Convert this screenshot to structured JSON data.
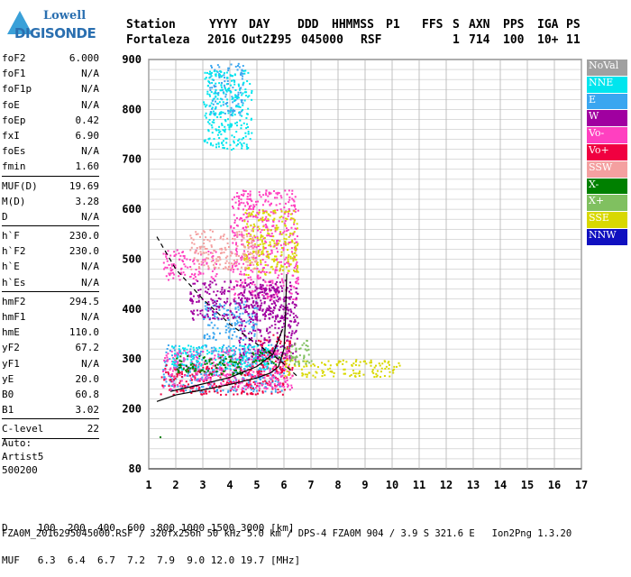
{
  "logo": {
    "line1": "Lowell",
    "line2": "DIGISONDE"
  },
  "header": {
    "labels": [
      "Station",
      "YYYY",
      "DAY",
      "DDD",
      "HHMMSS",
      "P1",
      "FFS",
      "S",
      "AXN",
      "PPS",
      "IGA",
      "PS"
    ],
    "values": [
      "Fortaleza",
      "2016",
      "Out21",
      "295",
      "045000",
      "RSF",
      "1",
      "714",
      "100",
      "10+",
      "11"
    ]
  },
  "params": [
    {
      "k": "foF2",
      "v": "6.000"
    },
    {
      "k": "foF1",
      "v": "N/A"
    },
    {
      "k": "foF1p",
      "v": "N/A"
    },
    {
      "k": "foE",
      "v": "N/A"
    },
    {
      "k": "foEp",
      "v": "0.42"
    },
    {
      "k": "fxI",
      "v": "6.90"
    },
    {
      "k": "foEs",
      "v": "N/A"
    },
    {
      "k": "fmin",
      "v": "1.60"
    },
    {
      "k": "MUF(D)",
      "v": "19.69"
    },
    {
      "k": "M(D)",
      "v": "3.28"
    },
    {
      "k": "D",
      "v": "N/A"
    },
    {
      "k": "h`F",
      "v": "230.0"
    },
    {
      "k": "h`F2",
      "v": "230.0"
    },
    {
      "k": "h`E",
      "v": "N/A"
    },
    {
      "k": "h`Es",
      "v": "N/A"
    },
    {
      "k": "hmF2",
      "v": "294.5"
    },
    {
      "k": "hmF1",
      "v": "N/A"
    },
    {
      "k": "hmE",
      "v": "110.0"
    },
    {
      "k": "yF2",
      "v": "67.2"
    },
    {
      "k": "yF1",
      "v": "N/A"
    },
    {
      "k": "yE",
      "v": "20.0"
    },
    {
      "k": "B0",
      "v": "60.8"
    },
    {
      "k": "B1",
      "v": "3.02"
    },
    {
      "k": "C-level",
      "v": "22"
    }
  ],
  "auto": {
    "line1": "Auto:",
    "line2": "Artist5",
    "line3": "500200"
  },
  "legend": [
    {
      "label": "NoVal",
      "color": "#a0a0a0"
    },
    {
      "label": "NNE",
      "color": "#00e5ee"
    },
    {
      "label": "E",
      "color": "#3aa6f0"
    },
    {
      "label": "W",
      "color": "#a000a0"
    },
    {
      "label": "Vo-",
      "color": "#ff40c0"
    },
    {
      "label": "Vo+",
      "color": "#f00040"
    },
    {
      "label": "SSW",
      "color": "#f4a0a0"
    },
    {
      "label": "X-",
      "color": "#008000"
    },
    {
      "label": "X+",
      "color": "#80c060"
    },
    {
      "label": "SSE",
      "color": "#d8d800"
    },
    {
      "label": "NNW",
      "color": "#1010c0"
    }
  ],
  "footer": {
    "d_line": "D     100  200  400  600  800 1000 1500 3000 [km]",
    "muf_line": "MUF   6.3  6.4  6.7  7.2  7.9  9.0 12.0 19.7 [MHz]",
    "file_line": "FZA0M_2016295045000.RSF / 320fx256h 50 kHz 5.0 km / DPS-4 FZA0M 904 / 3.9 S 321.6 E   Ion2Png 1.3.20"
  },
  "chart_data": {
    "type": "scatter",
    "xlim": [
      1,
      17
    ],
    "ylim": [
      80,
      900
    ],
    "xticks": [
      "1",
      "2",
      "3",
      "4",
      "5",
      "6",
      "7",
      "8",
      "9",
      "10",
      "11",
      "12",
      "13",
      "14",
      "15",
      "16",
      "17"
    ],
    "yticks": [
      "80",
      "200",
      "300",
      "400",
      "500",
      "600",
      "700",
      "800",
      "900"
    ],
    "grid": true,
    "series": [
      {
        "name": "E",
        "color": "#3aa6f0",
        "clusters": [
          [
            1.5,
            6.0,
            235,
            330
          ],
          [
            3.0,
            5.0,
            340,
            420
          ],
          [
            3.2,
            4.5,
            790,
            895
          ]
        ]
      },
      {
        "name": "Vo+",
        "color": "#f00040",
        "clusters": [
          [
            1.4,
            6.0,
            230,
            290
          ],
          [
            5.0,
            6.3,
            260,
            350
          ]
        ]
      },
      {
        "name": "Vo-",
        "color": "#ff40c0",
        "clusters": [
          [
            1.5,
            6.3,
            240,
            320
          ],
          [
            4.0,
            6.5,
            420,
            640
          ],
          [
            1.5,
            3.5,
            460,
            520
          ]
        ]
      },
      {
        "name": "W",
        "color": "#a000a0",
        "clusters": [
          [
            2.5,
            6.2,
            380,
            460
          ],
          [
            4.3,
            6.5,
            300,
            450
          ]
        ]
      },
      {
        "name": "SSE",
        "color": "#d8d800",
        "clusters": [
          [
            6.0,
            10.3,
            265,
            300
          ],
          [
            4.5,
            6.5,
            470,
            600
          ]
        ]
      },
      {
        "name": "NNE",
        "color": "#00e5ee",
        "clusters": [
          [
            1.8,
            5.5,
            280,
            330
          ],
          [
            3.0,
            4.8,
            720,
            880
          ]
        ]
      },
      {
        "name": "X-",
        "color": "#008000",
        "clusters": [
          [
            2.0,
            4.5,
            270,
            310
          ],
          [
            4.8,
            5.8,
            290,
            320
          ]
        ]
      },
      {
        "name": "X+",
        "color": "#80c060",
        "clusters": [
          [
            6.0,
            7.0,
            290,
            340
          ]
        ]
      },
      {
        "name": "SSW",
        "color": "#f4a0a0",
        "clusters": [
          [
            2.5,
            5.0,
            480,
            560
          ]
        ]
      }
    ],
    "lines": {
      "profile_solid": [
        [
          1.3,
          215
        ],
        [
          2,
          228
        ],
        [
          3,
          238
        ],
        [
          4,
          249
        ],
        [
          5,
          262
        ],
        [
          5.5,
          272
        ],
        [
          5.8,
          285
        ],
        [
          6.0,
          320
        ],
        [
          6.05,
          370
        ],
        [
          6.1,
          470
        ]
      ],
      "profile_solid2": [
        [
          1.8,
          235
        ],
        [
          3,
          250
        ],
        [
          4,
          263
        ],
        [
          5,
          285
        ],
        [
          5.6,
          310
        ],
        [
          5.95,
          360
        ]
      ],
      "dashed": [
        [
          1.3,
          545
        ],
        [
          2,
          480
        ],
        [
          3,
          420
        ],
        [
          4,
          370
        ],
        [
          5,
          330
        ],
        [
          5.8,
          300
        ],
        [
          6.2,
          280
        ],
        [
          6.5,
          265
        ]
      ]
    }
  }
}
